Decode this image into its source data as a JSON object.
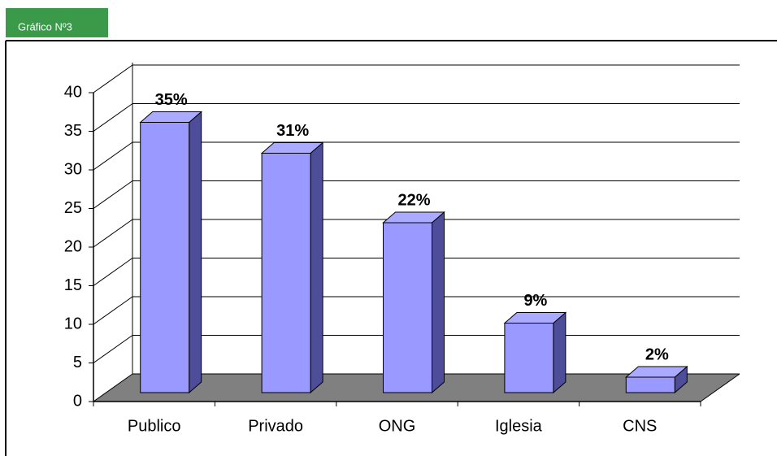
{
  "caption": "Gráfico Nº3",
  "chart_data": {
    "type": "bar3d",
    "categories": [
      "Publico",
      "Privado",
      "ONG",
      "Iglesia",
      "CNS"
    ],
    "values": [
      35,
      31,
      22,
      9,
      2
    ],
    "value_labels": [
      "35%",
      "31%",
      "22%",
      "9%",
      "2%"
    ],
    "color": "#9999ff",
    "ylim": [
      0,
      40
    ],
    "yticks": [
      0,
      5,
      10,
      15,
      20,
      25,
      30,
      35,
      40
    ],
    "grid": true
  }
}
